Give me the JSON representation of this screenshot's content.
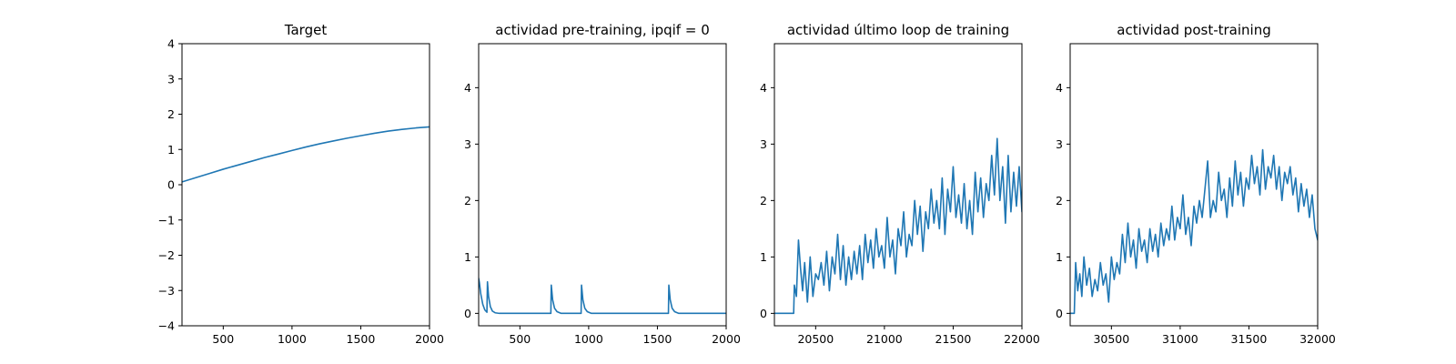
{
  "chart_data": [
    {
      "type": "line",
      "title": "Target",
      "xlabel": "",
      "ylabel": "",
      "xlim": [
        200,
        2000
      ],
      "ylim": [
        -4,
        4
      ],
      "xticks": [
        "500",
        "1000",
        "1500",
        "2000"
      ],
      "yticks": [
        "−4",
        "−3",
        "−2",
        "−1",
        "0",
        "1",
        "2",
        "3",
        "4"
      ],
      "grid": false,
      "color": "#1f77b4",
      "series": [
        {
          "x": [
            200,
            300,
            400,
            500,
            600,
            700,
            800,
            900,
            1000,
            1100,
            1200,
            1300,
            1400,
            1500,
            1600,
            1700,
            1800,
            1900,
            2000
          ],
          "y": [
            0.08,
            0.2,
            0.32,
            0.44,
            0.55,
            0.66,
            0.77,
            0.87,
            0.97,
            1.07,
            1.16,
            1.24,
            1.32,
            1.39,
            1.46,
            1.52,
            1.57,
            1.61,
            1.64
          ]
        }
      ]
    },
    {
      "type": "line",
      "title": "actividad pre-training, ipqif = 0",
      "xlabel": "",
      "ylabel": "",
      "xlim": [
        200,
        2000
      ],
      "ylim": [
        -0.22,
        4.78
      ],
      "xticks": [
        "500",
        "1000",
        "1500",
        "2000"
      ],
      "yticks": [
        "0",
        "1",
        "2",
        "3",
        "4"
      ],
      "grid": false,
      "color": "#1f77b4",
      "series": [
        {
          "x": [
            200,
            205,
            215,
            230,
            245,
            260,
            264,
            272,
            285,
            300,
            320,
            350,
            725,
            728,
            738,
            752,
            770,
            800,
            945,
            948,
            958,
            972,
            990,
            1020,
            1580,
            1583,
            1593,
            1607,
            1625,
            1655,
            2000
          ],
          "y": [
            0.62,
            0.55,
            0.35,
            0.16,
            0.06,
            0.02,
            0.56,
            0.3,
            0.12,
            0.04,
            0.01,
            0.0,
            0.0,
            0.5,
            0.24,
            0.09,
            0.03,
            0.0,
            0.0,
            0.5,
            0.24,
            0.09,
            0.03,
            0.0,
            0.0,
            0.5,
            0.24,
            0.09,
            0.03,
            0.0,
            0.0
          ]
        }
      ]
    },
    {
      "type": "line",
      "title": "actividad último loop de training",
      "xlabel": "",
      "ylabel": "",
      "xlim": [
        20200,
        22000
      ],
      "ylim": [
        -0.22,
        4.78
      ],
      "xticks": [
        "20500",
        "21000",
        "21500",
        "22000"
      ],
      "yticks": [
        "0",
        "1",
        "2",
        "3",
        "4"
      ],
      "grid": false,
      "color": "#1f77b4",
      "series": [
        {
          "x": [
            20200,
            20340,
            20345,
            20360,
            20375,
            20390,
            20405,
            20420,
            20440,
            20460,
            20480,
            20500,
            20520,
            20540,
            20560,
            20580,
            20600,
            20620,
            20640,
            20660,
            20680,
            20700,
            20720,
            20740,
            20760,
            20780,
            20800,
            20820,
            20840,
            20860,
            20880,
            20900,
            20920,
            20940,
            20960,
            20980,
            21000,
            21020,
            21040,
            21060,
            21080,
            21100,
            21120,
            21140,
            21160,
            21180,
            21200,
            21220,
            21240,
            21260,
            21280,
            21300,
            21320,
            21340,
            21360,
            21380,
            21400,
            21420,
            21440,
            21460,
            21480,
            21500,
            21520,
            21540,
            21560,
            21580,
            21600,
            21620,
            21640,
            21660,
            21680,
            21700,
            21720,
            21740,
            21760,
            21780,
            21800,
            21820,
            21840,
            21860,
            21880,
            21900,
            21920,
            21940,
            21960,
            21980,
            22000
          ],
          "y": [
            0.0,
            0.0,
            0.5,
            0.3,
            1.3,
            0.8,
            0.4,
            0.9,
            0.2,
            1.0,
            0.3,
            0.7,
            0.6,
            0.9,
            0.5,
            1.1,
            0.4,
            1.0,
            0.7,
            1.4,
            0.6,
            1.2,
            0.5,
            1.0,
            0.6,
            1.1,
            0.7,
            1.2,
            0.6,
            1.4,
            0.9,
            1.3,
            0.8,
            1.5,
            1.0,
            1.2,
            0.8,
            1.7,
            1.0,
            1.3,
            0.7,
            1.5,
            1.2,
            1.8,
            1.0,
            1.4,
            1.2,
            2.0,
            1.4,
            1.9,
            1.1,
            1.8,
            1.5,
            2.2,
            1.6,
            2.0,
            1.5,
            2.4,
            1.4,
            2.2,
            1.8,
            2.6,
            1.7,
            2.1,
            1.6,
            2.3,
            1.5,
            2.0,
            1.4,
            2.5,
            1.8,
            2.4,
            1.7,
            2.3,
            2.0,
            2.8,
            2.1,
            3.1,
            2.0,
            2.6,
            1.6,
            2.8,
            1.8,
            2.5,
            1.9,
            2.6,
            1.8
          ]
        }
      ]
    },
    {
      "type": "line",
      "title": "actividad post-training",
      "xlabel": "",
      "ylabel": "",
      "xlim": [
        30200,
        32000
      ],
      "ylim": [
        -0.22,
        4.78
      ],
      "xticks": [
        "30500",
        "31000",
        "31500",
        "32000"
      ],
      "yticks": [
        "0",
        "1",
        "2",
        "3",
        "4"
      ],
      "grid": false,
      "color": "#1f77b4",
      "series": [
        {
          "x": [
            30200,
            30230,
            30240,
            30255,
            30270,
            30285,
            30300,
            30320,
            30340,
            30360,
            30380,
            30400,
            30420,
            30440,
            30460,
            30480,
            30500,
            30520,
            30540,
            30560,
            30580,
            30600,
            30620,
            30640,
            30660,
            30680,
            30700,
            30720,
            30740,
            30760,
            30780,
            30800,
            30820,
            30840,
            30860,
            30880,
            30900,
            30920,
            30940,
            30960,
            30980,
            31000,
            31020,
            31040,
            31060,
            31080,
            31100,
            31120,
            31140,
            31160,
            31180,
            31200,
            31220,
            31240,
            31260,
            31280,
            31300,
            31320,
            31340,
            31360,
            31380,
            31400,
            31420,
            31440,
            31460,
            31480,
            31500,
            31520,
            31540,
            31560,
            31580,
            31600,
            31620,
            31640,
            31660,
            31680,
            31700,
            31720,
            31740,
            31760,
            31780,
            31800,
            31820,
            31840,
            31860,
            31880,
            31900,
            31920,
            31940,
            31960,
            31980,
            32000
          ],
          "y": [
            0.0,
            0.0,
            0.9,
            0.4,
            0.7,
            0.3,
            1.0,
            0.5,
            0.8,
            0.3,
            0.6,
            0.4,
            0.9,
            0.5,
            0.7,
            0.2,
            1.0,
            0.6,
            0.9,
            0.7,
            1.4,
            0.9,
            1.6,
            1.0,
            1.3,
            0.8,
            1.5,
            1.1,
            1.3,
            0.9,
            1.5,
            1.1,
            1.4,
            1.0,
            1.6,
            1.2,
            1.5,
            1.3,
            1.9,
            1.3,
            1.7,
            1.5,
            2.1,
            1.4,
            1.7,
            1.2,
            1.9,
            1.6,
            2.0,
            1.7,
            2.2,
            2.7,
            1.7,
            2.0,
            1.8,
            2.5,
            2.0,
            2.2,
            1.7,
            2.4,
            1.9,
            2.7,
            2.1,
            2.5,
            1.9,
            2.4,
            2.2,
            2.8,
            2.3,
            2.6,
            2.1,
            2.9,
            2.2,
            2.6,
            2.4,
            2.8,
            2.2,
            2.6,
            2.0,
            2.5,
            2.3,
            2.6,
            2.1,
            2.4,
            1.8,
            2.3,
            1.9,
            2.2,
            1.7,
            2.1,
            1.5,
            1.3
          ]
        }
      ]
    }
  ]
}
